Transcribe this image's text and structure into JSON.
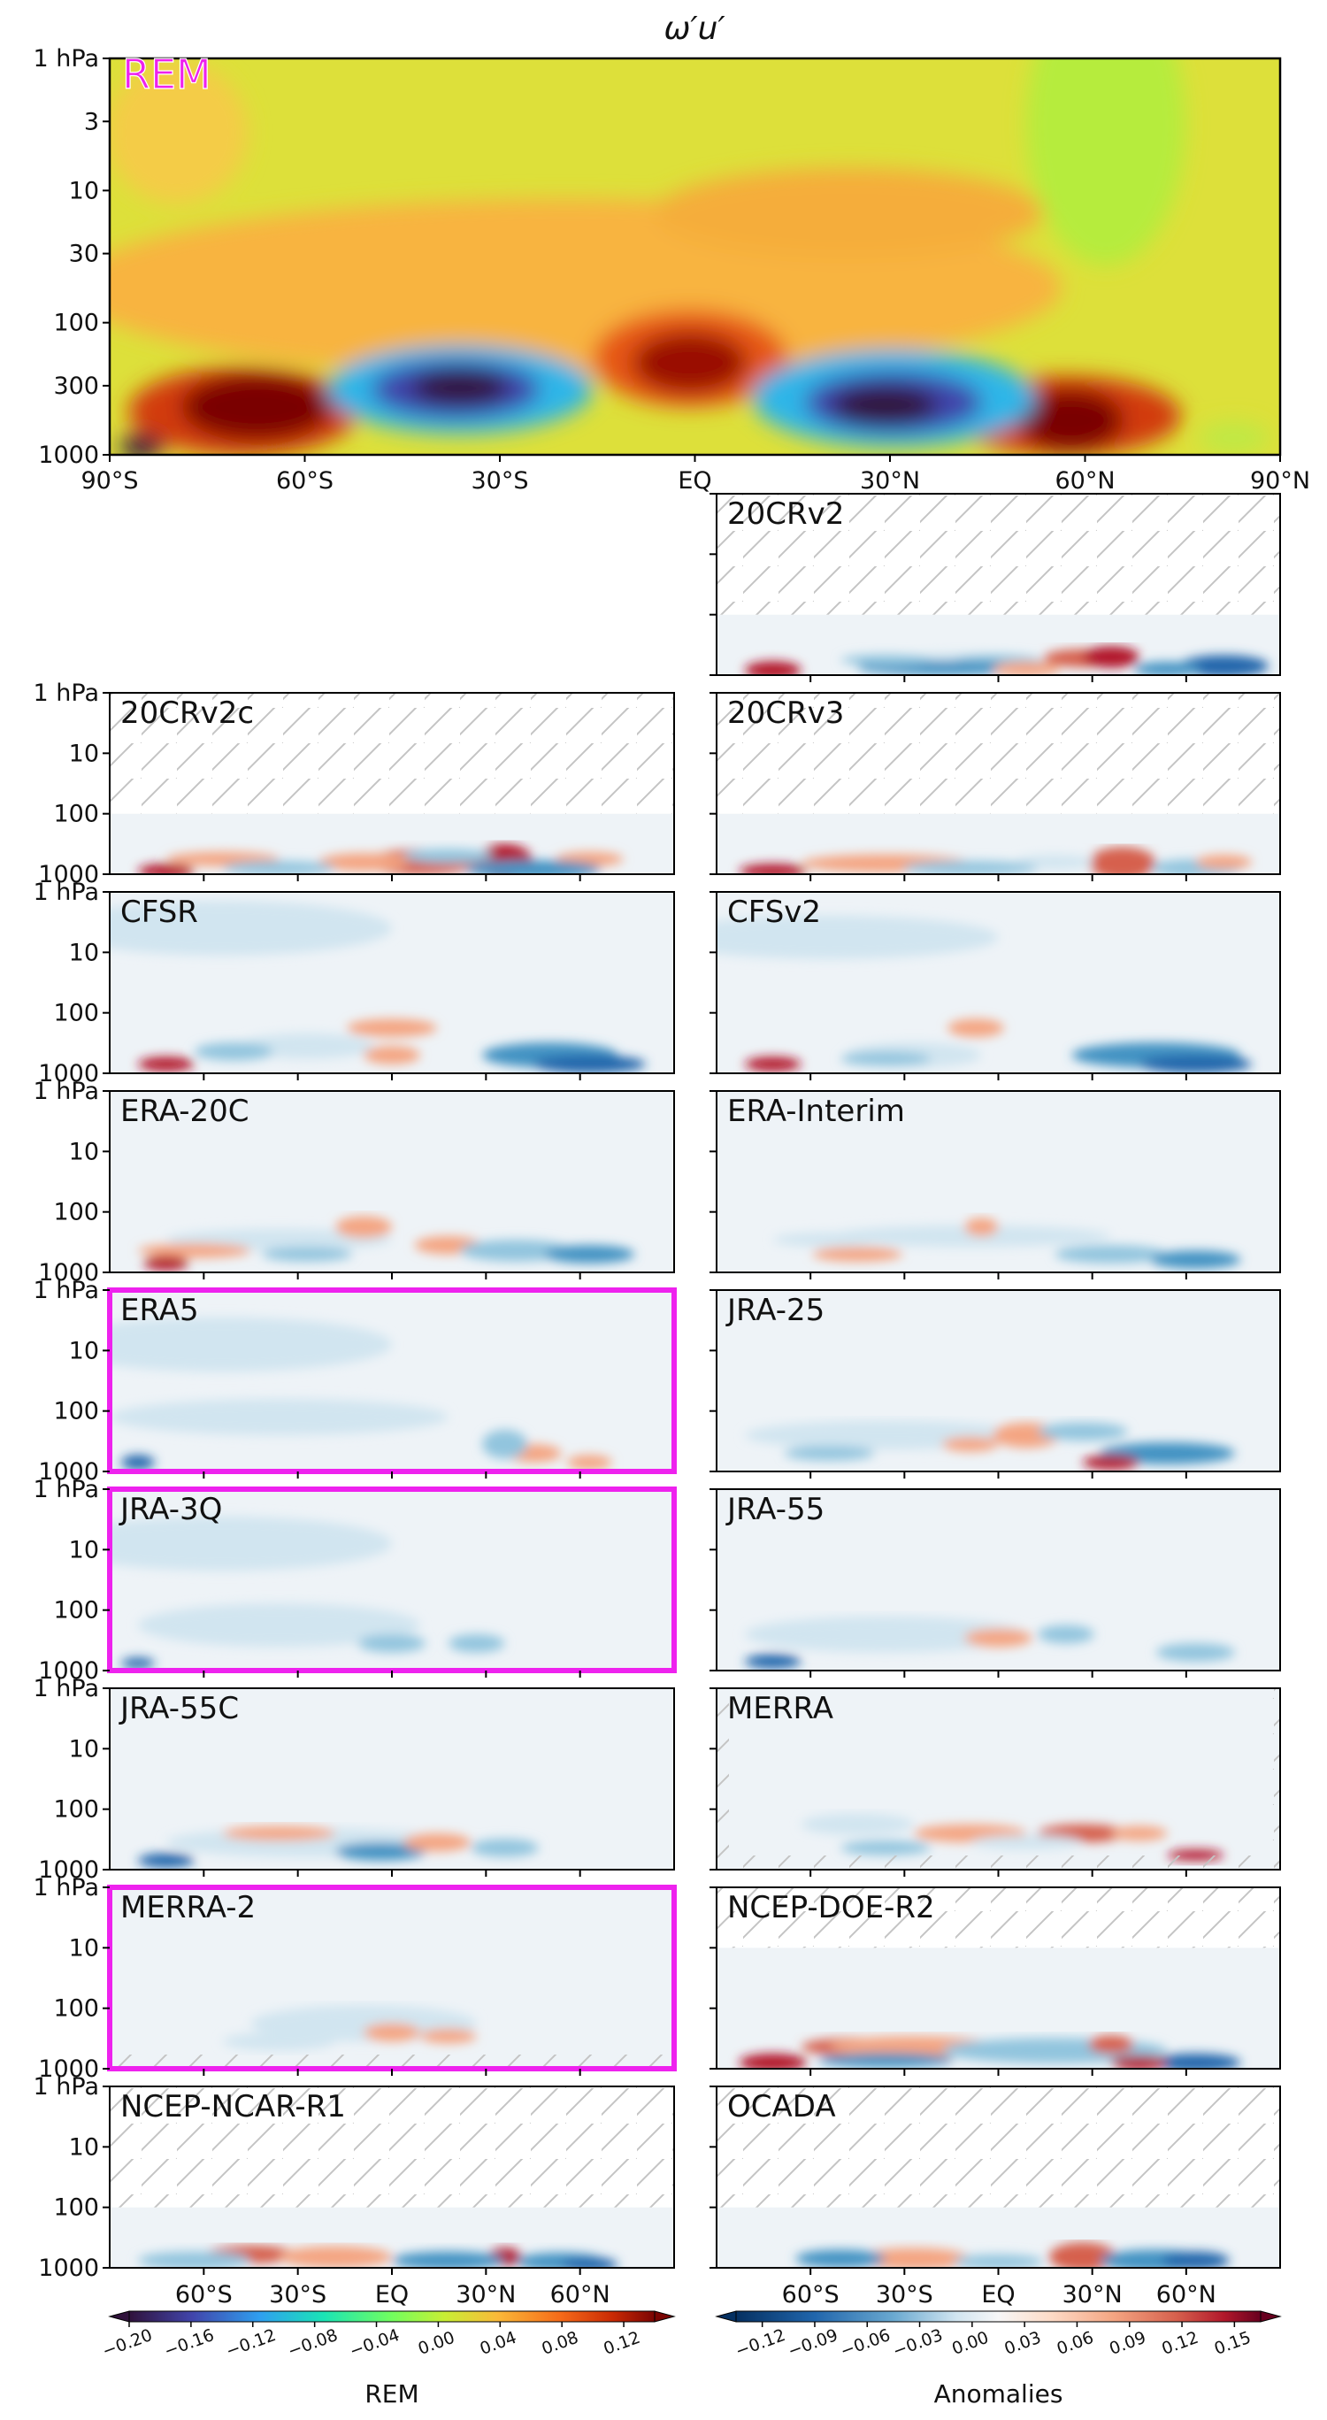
{
  "chart_data": {
    "type": "heatmap",
    "title": "ω′u′",
    "main_panel": {
      "label": "REM",
      "x_ticks": [
        "90°S",
        "60°S",
        "30°S",
        "EQ",
        "30°N",
        "60°N",
        "90°N"
      ],
      "y_ticks": [
        "1 hPa",
        "3",
        "10",
        "30",
        "100",
        "300",
        "1000"
      ],
      "y_scale": "log",
      "ylim": [
        1000,
        1
      ],
      "xlim": [
        -90,
        90
      ]
    },
    "small_y_ticks": [
      "1 hPa",
      "10",
      "100",
      "1000"
    ],
    "small_x_ticks": [
      "60°S",
      "30°S",
      "EQ",
      "30°N",
      "60°N"
    ],
    "panels": [
      {
        "name": "20CRv2",
        "top_limit_hPa": 100
      },
      {
        "name": "20CRv2c",
        "top_limit_hPa": 100
      },
      {
        "name": "20CRv3",
        "top_limit_hPa": 100
      },
      {
        "name": "CFSR",
        "top_limit_hPa": 1
      },
      {
        "name": "CFSv2",
        "top_limit_hPa": 1
      },
      {
        "name": "ERA-20C",
        "top_limit_hPa": 1
      },
      {
        "name": "ERA-Interim",
        "top_limit_hPa": 1
      },
      {
        "name": "ERA5",
        "top_limit_hPa": 1,
        "highlighted": true
      },
      {
        "name": "JRA-25",
        "top_limit_hPa": 1
      },
      {
        "name": "JRA-3Q",
        "top_limit_hPa": 1,
        "highlighted": true
      },
      {
        "name": "JRA-55",
        "top_limit_hPa": 1
      },
      {
        "name": "JRA-55C",
        "top_limit_hPa": 1
      },
      {
        "name": "MERRA",
        "top_limit_hPa": 1
      },
      {
        "name": "MERRA-2",
        "top_limit_hPa": 1,
        "highlighted": true
      },
      {
        "name": "NCEP-DOE-R2",
        "top_limit_hPa": 10
      },
      {
        "name": "NCEP-NCAR-R1",
        "top_limit_hPa": 100
      },
      {
        "name": "OCADA",
        "top_limit_hPa": 100
      }
    ],
    "colorbars": [
      {
        "label": "REM",
        "ticks": [
          "−0.20",
          "−0.16",
          "−0.12",
          "−0.08",
          "−0.04",
          "0.00",
          "0.04",
          "0.08",
          "0.12"
        ],
        "range": [
          -0.2,
          0.14
        ]
      },
      {
        "label": "Anomalies",
        "ticks": [
          "−0.12",
          "−0.09",
          "−0.06",
          "−0.03",
          "0.00",
          "0.03",
          "0.06",
          "0.09",
          "0.12",
          "0.15"
        ],
        "range": [
          -0.135,
          0.165
        ]
      }
    ]
  },
  "colors": {
    "highlight": "#ee22ee",
    "hatch": "#bbbbbb"
  }
}
